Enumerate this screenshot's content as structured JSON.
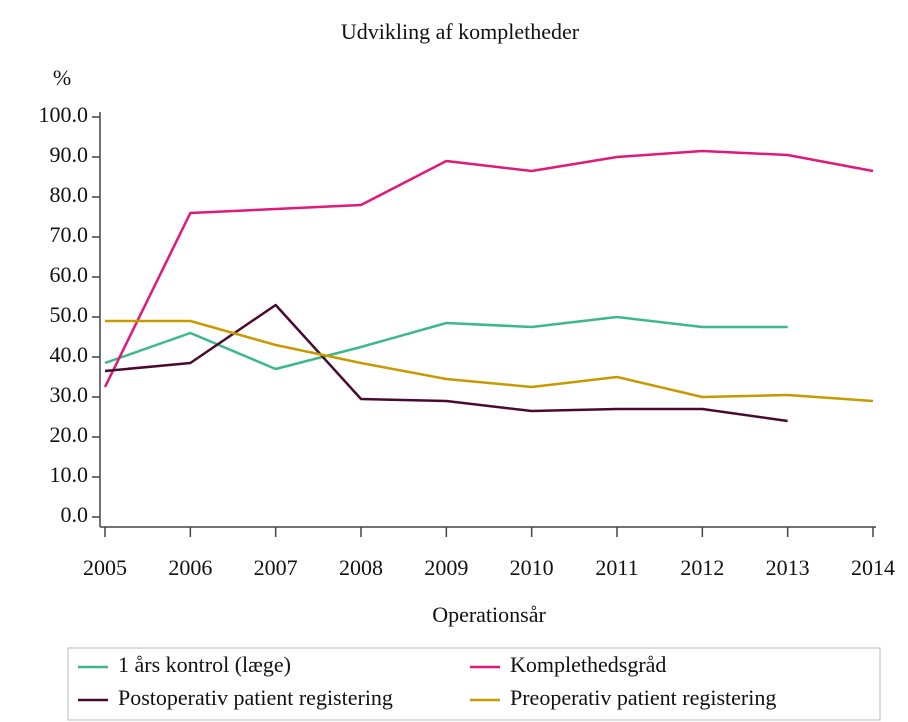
{
  "chart_data": {
    "type": "line",
    "title": "Udvikling af kompletheder",
    "ylabel": "%",
    "xlabel": "Operationsår",
    "x": [
      2005,
      2006,
      2007,
      2008,
      2009,
      2010,
      2011,
      2012,
      2013,
      2014
    ],
    "xlim": [
      2005,
      2014
    ],
    "xticks": [
      2005,
      2006,
      2007,
      2008,
      2009,
      2010,
      2011,
      2012,
      2013,
      2014
    ],
    "ylim": [
      0,
      100
    ],
    "yticks": [
      {
        "value": 0,
        "label": "0.0"
      },
      {
        "value": 10,
        "label": "10.0"
      },
      {
        "value": 20,
        "label": "20.0"
      },
      {
        "value": 30,
        "label": "30.0"
      },
      {
        "value": 40,
        "label": "40.0"
      },
      {
        "value": 50,
        "label": "50.0"
      },
      {
        "value": 60,
        "label": "60.0"
      },
      {
        "value": 70,
        "label": "70.0"
      },
      {
        "value": 80,
        "label": "80.0"
      },
      {
        "value": 90,
        "label": "90.0"
      },
      {
        "value": 100,
        "label": "100.0"
      }
    ],
    "grid": false,
    "legend": "bottom",
    "series": [
      {
        "name": "1 års kontrol (læge)",
        "color": "#3cb88a",
        "values": [
          38.5,
          46,
          37,
          42.5,
          48.5,
          47.5,
          50,
          47.5,
          47.5,
          null
        ]
      },
      {
        "name": "Komplethedsgråd",
        "color": "#e0197d",
        "values": [
          32.5,
          76,
          77,
          78,
          89,
          86.5,
          90,
          91.5,
          90.5,
          86.5
        ]
      },
      {
        "name": "Postoperativ patient registering",
        "color": "#4a0a30",
        "values": [
          36.5,
          38.5,
          53,
          29.5,
          29,
          26.5,
          27,
          27,
          24,
          null
        ]
      },
      {
        "name": "Preoperativ patient registering",
        "color": "#c89a00",
        "values": [
          49,
          49,
          43,
          38.5,
          34.5,
          32.5,
          35,
          30,
          30.5,
          29
        ]
      }
    ]
  }
}
